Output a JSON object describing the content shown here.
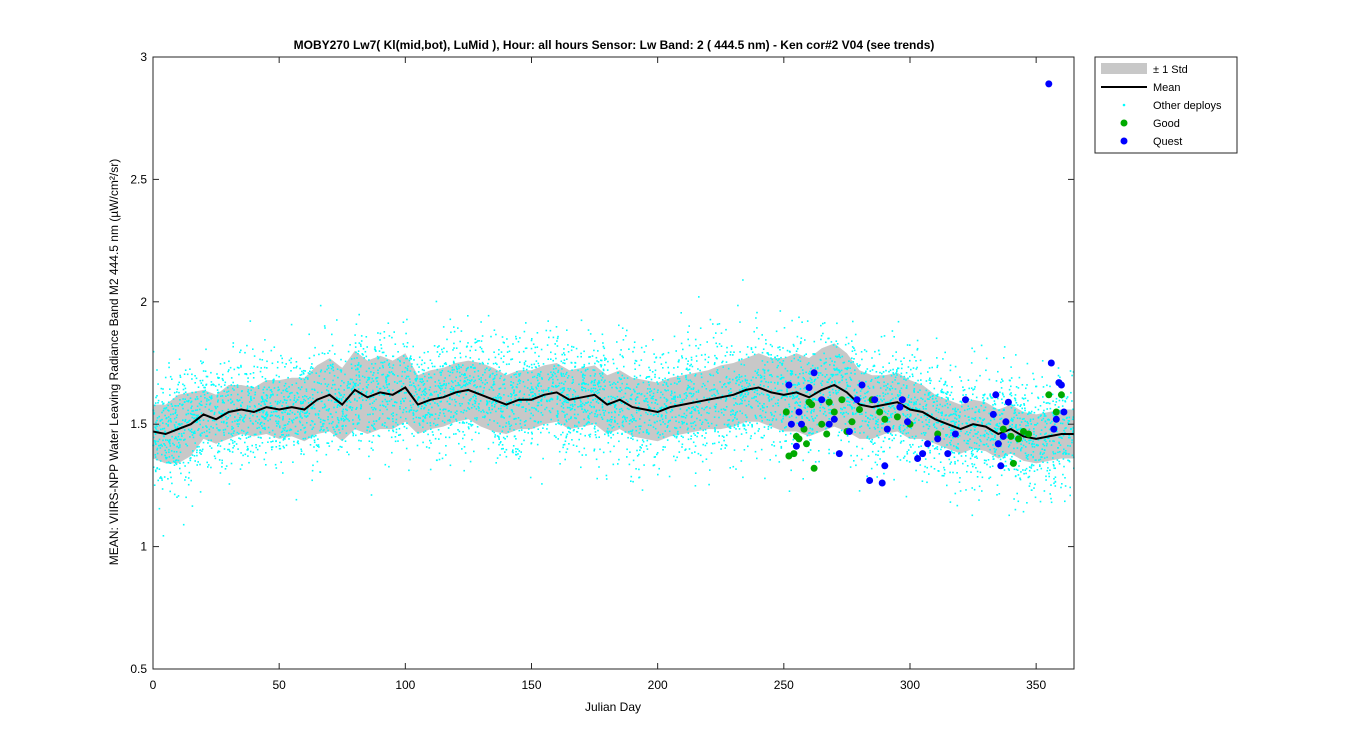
{
  "chart_data": {
    "type": "scatter",
    "title": "MOBY270   Lw7( Kl(mid,bot), LuMid ),   Hour: all hours  Sensor: Lw Band: 2 ( 444.5 nm)  - Ken cor#2 V04 (see trends)",
    "xlabel": "Julian Day",
    "ylabel": "MEAN: VIIRS-NPP Water Leaving Radiance Band M2 444.5 nm (µW/cm²/sr)",
    "xlim": [
      0,
      365
    ],
    "ylim": [
      0.5,
      3
    ],
    "x_ticks": [
      "0",
      "50",
      "100",
      "150",
      "200",
      "250",
      "300",
      "350"
    ],
    "y_ticks": [
      "0.5",
      "1",
      "1.5",
      "2",
      "2.5",
      "3"
    ],
    "grid": false,
    "legend_position": "outside-top-right",
    "colors": {
      "std_band": "#c8c8c8",
      "mean": "#000000",
      "other": "#00ffff",
      "good": "#00aa00",
      "quest": "#0000ff"
    },
    "series": [
      {
        "name": "Mean",
        "x": [
          0,
          5,
          10,
          15,
          20,
          25,
          30,
          35,
          40,
          45,
          50,
          55,
          60,
          65,
          70,
          75,
          80,
          85,
          90,
          95,
          100,
          105,
          110,
          115,
          120,
          125,
          130,
          135,
          140,
          145,
          150,
          155,
          160,
          165,
          170,
          175,
          180,
          185,
          190,
          195,
          200,
          205,
          210,
          215,
          220,
          225,
          230,
          235,
          240,
          245,
          250,
          255,
          260,
          265,
          270,
          275,
          280,
          285,
          290,
          295,
          300,
          305,
          310,
          315,
          320,
          325,
          330,
          335,
          340,
          345,
          350,
          355,
          360,
          365
        ],
        "y": [
          1.47,
          1.46,
          1.48,
          1.5,
          1.54,
          1.52,
          1.55,
          1.56,
          1.55,
          1.57,
          1.56,
          1.57,
          1.56,
          1.6,
          1.62,
          1.58,
          1.64,
          1.61,
          1.63,
          1.62,
          1.65,
          1.58,
          1.6,
          1.61,
          1.63,
          1.64,
          1.62,
          1.6,
          1.58,
          1.6,
          1.6,
          1.62,
          1.63,
          1.6,
          1.61,
          1.62,
          1.58,
          1.6,
          1.57,
          1.56,
          1.55,
          1.57,
          1.58,
          1.59,
          1.6,
          1.61,
          1.62,
          1.64,
          1.65,
          1.63,
          1.62,
          1.63,
          1.61,
          1.64,
          1.66,
          1.63,
          1.58,
          1.57,
          1.58,
          1.59,
          1.56,
          1.55,
          1.52,
          1.5,
          1.48,
          1.5,
          1.49,
          1.46,
          1.48,
          1.45,
          1.44,
          1.45,
          1.46,
          1.46
        ]
      },
      {
        "name": "± 1 Std",
        "x": [
          0,
          5,
          10,
          15,
          20,
          25,
          30,
          35,
          40,
          45,
          50,
          55,
          60,
          65,
          70,
          75,
          80,
          85,
          90,
          95,
          100,
          105,
          110,
          115,
          120,
          125,
          130,
          135,
          140,
          145,
          150,
          155,
          160,
          165,
          170,
          175,
          180,
          185,
          190,
          195,
          200,
          205,
          210,
          215,
          220,
          225,
          230,
          235,
          240,
          245,
          250,
          255,
          260,
          265,
          270,
          275,
          280,
          285,
          290,
          295,
          300,
          305,
          310,
          315,
          320,
          325,
          330,
          335,
          340,
          345,
          350,
          355,
          360,
          365
        ],
        "y": [
          0.11,
          0.12,
          0.14,
          0.13,
          0.1,
          0.1,
          0.11,
          0.1,
          0.1,
          0.11,
          0.12,
          0.12,
          0.13,
          0.14,
          0.15,
          0.15,
          0.16,
          0.15,
          0.15,
          0.14,
          0.14,
          0.12,
          0.12,
          0.12,
          0.12,
          0.12,
          0.13,
          0.13,
          0.12,
          0.12,
          0.12,
          0.12,
          0.12,
          0.12,
          0.12,
          0.12,
          0.12,
          0.12,
          0.12,
          0.12,
          0.12,
          0.12,
          0.12,
          0.12,
          0.12,
          0.13,
          0.13,
          0.13,
          0.14,
          0.14,
          0.15,
          0.16,
          0.16,
          0.17,
          0.17,
          0.16,
          0.14,
          0.13,
          0.12,
          0.12,
          0.12,
          0.11,
          0.1,
          0.1,
          0.1,
          0.1,
          0.1,
          0.1,
          0.1,
          0.1,
          0.1,
          0.1,
          0.1,
          0.1
        ]
      },
      {
        "name": "Other deploys",
        "count": 6000,
        "y_center": "Mean",
        "y_spread": 0.12,
        "x_range": [
          0,
          365
        ]
      },
      {
        "name": "Good",
        "x": [
          251,
          252,
          254,
          255,
          256,
          258,
          259,
          260,
          261,
          262,
          265,
          267,
          268,
          270,
          273,
          275,
          277,
          280,
          285,
          288,
          290,
          295,
          300,
          311,
          335,
          337,
          340,
          341,
          343,
          345,
          347,
          355,
          358,
          360
        ],
        "y": [
          1.55,
          1.37,
          1.38,
          1.45,
          1.44,
          1.48,
          1.42,
          1.59,
          1.58,
          1.32,
          1.5,
          1.46,
          1.59,
          1.55,
          1.6,
          1.47,
          1.51,
          1.56,
          1.6,
          1.55,
          1.52,
          1.53,
          1.5,
          1.46,
          1.42,
          1.48,
          1.45,
          1.34,
          1.44,
          1.47,
          1.46,
          1.62,
          1.55,
          1.62
        ]
      },
      {
        "name": "Quest",
        "x": [
          252,
          253,
          255,
          256,
          257,
          260,
          262,
          265,
          268,
          270,
          272,
          276,
          279,
          281,
          284,
          286,
          289,
          290,
          291,
          296,
          297,
          299,
          303,
          305,
          307,
          311,
          315,
          318,
          322,
          333,
          334,
          335,
          336,
          337,
          338,
          339,
          355,
          356,
          357,
          358,
          359,
          360,
          361
        ],
        "y": [
          1.66,
          1.5,
          1.41,
          1.55,
          1.5,
          1.65,
          1.71,
          1.6,
          1.5,
          1.52,
          1.38,
          1.47,
          1.6,
          1.66,
          1.27,
          1.6,
          1.26,
          1.33,
          1.48,
          1.57,
          1.6,
          1.51,
          1.36,
          1.38,
          1.42,
          1.44,
          1.38,
          1.46,
          1.6,
          1.54,
          1.62,
          1.42,
          1.33,
          1.45,
          1.51,
          1.59,
          2.89,
          1.75,
          1.48,
          1.52,
          1.67,
          1.66,
          1.55
        ]
      }
    ]
  }
}
